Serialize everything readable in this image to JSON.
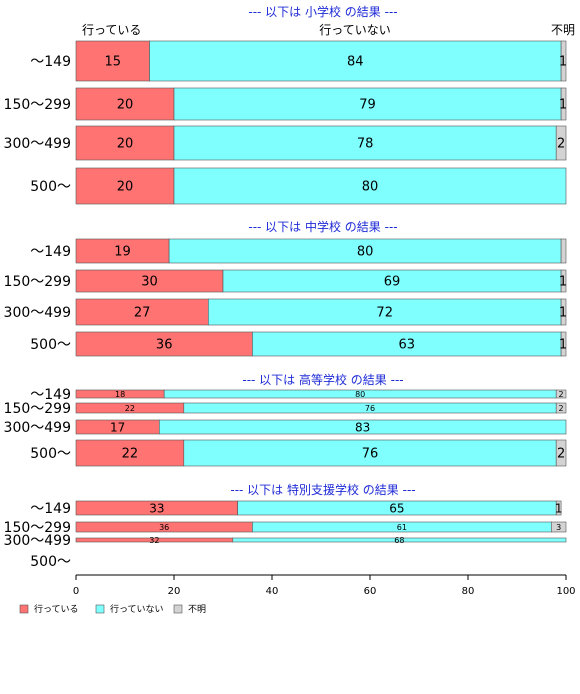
{
  "chart_data": {
    "type": "bar",
    "orientation": "horizontal",
    "stacked": true,
    "xlim": [
      0,
      100
    ],
    "x_ticks": [
      "0",
      "20",
      "40",
      "60",
      "80",
      "100"
    ],
    "series_names": [
      "行っている",
      "行っていない",
      "不明"
    ],
    "colors": {
      "yes": "#ff7373",
      "no": "#80ffff",
      "unknown": "#d3d3d3",
      "title": "#1f2bd6"
    },
    "column_headers": {
      "yes": "行っている",
      "no": "行っていない",
      "unknown": "不明"
    },
    "sections": [
      {
        "title": "--- 以下は 小学校 の結果 ---",
        "rows": [
          {
            "label": "～149",
            "values": [
              15,
              84,
              1
            ],
            "labels": [
              "15",
              "84",
              "1"
            ]
          },
          {
            "label": "150～299",
            "values": [
              20,
              79,
              1
            ],
            "labels": [
              "20",
              "79",
              "1"
            ]
          },
          {
            "label": "300～499",
            "values": [
              20,
              78,
              2
            ],
            "labels": [
              "20",
              "78",
              "2"
            ]
          },
          {
            "label": "500～",
            "values": [
              20,
              80,
              0
            ],
            "labels": [
              "20",
              "80",
              ""
            ]
          }
        ]
      },
      {
        "title": "--- 以下は 中学校 の結果 ---",
        "rows": [
          {
            "label": "～149",
            "values": [
              19,
              80,
              1
            ],
            "labels": [
              "19",
              "80",
              ""
            ]
          },
          {
            "label": "150～299",
            "values": [
              30,
              69,
              1
            ],
            "labels": [
              "30",
              "69",
              "1"
            ]
          },
          {
            "label": "300～499",
            "values": [
              27,
              72,
              1
            ],
            "labels": [
              "27",
              "72",
              "1"
            ]
          },
          {
            "label": "500～",
            "values": [
              36,
              63,
              1
            ],
            "labels": [
              "36",
              "63",
              "1"
            ]
          }
        ]
      },
      {
        "title": "--- 以下は 高等学校 の結果 ---",
        "rows": [
          {
            "label": "～149",
            "values": [
              18,
              80,
              2
            ],
            "labels": [
              "18",
              "80",
              "2"
            ]
          },
          {
            "label": "150～299",
            "values": [
              22,
              76,
              2
            ],
            "labels": [
              "22",
              "76",
              "2"
            ]
          },
          {
            "label": "300～499",
            "values": [
              17,
              83,
              0
            ],
            "labels": [
              "17",
              "83",
              ""
            ]
          },
          {
            "label": "500～",
            "values": [
              22,
              76,
              2
            ],
            "labels": [
              "22",
              "76",
              "2"
            ]
          }
        ]
      },
      {
        "title": "--- 以下は 特別支援学校 の結果 ---",
        "rows": [
          {
            "label": "～149",
            "values": [
              33,
              65,
              1
            ],
            "labels": [
              "33",
              "65",
              "1"
            ]
          },
          {
            "label": "150～299",
            "values": [
              36,
              61,
              3
            ],
            "labels": [
              "36",
              "61",
              "3"
            ]
          },
          {
            "label": "300～499",
            "values": [
              32,
              68,
              0
            ],
            "labels": [
              "32",
              "68",
              ""
            ]
          },
          {
            "label": "500～",
            "values": [
              0,
              0,
              0
            ],
            "labels": [
              "",
              "",
              ""
            ]
          }
        ]
      }
    ],
    "legend": {
      "position": "bottom-left",
      "entries": [
        "行っている",
        "行っていない",
        "不明"
      ]
    }
  }
}
